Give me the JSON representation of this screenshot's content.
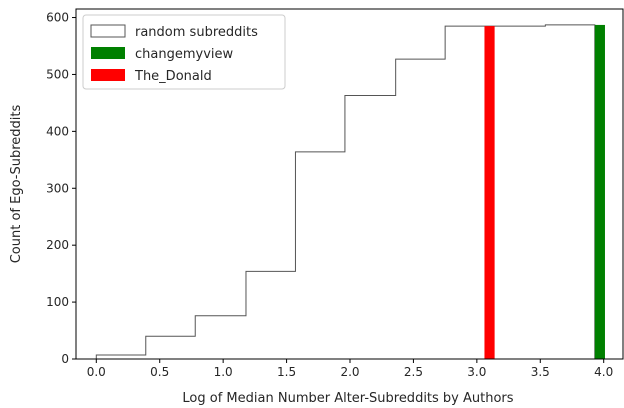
{
  "chart_data": {
    "type": "histogram",
    "title": "",
    "xlabel": "Log of Median Number Alter-Subreddits by Authors",
    "ylabel": "Count of Ego-Subreddits",
    "xlim": [
      -0.16,
      4.16
    ],
    "ylim": [
      0,
      615
    ],
    "x_ticks": [
      {
        "value": 0.0,
        "label": "0.0"
      },
      {
        "value": 0.5,
        "label": "0.5"
      },
      {
        "value": 1.0,
        "label": "1.0"
      },
      {
        "value": 1.5,
        "label": "1.5"
      },
      {
        "value": 2.0,
        "label": "2.0"
      },
      {
        "value": 2.5,
        "label": "2.5"
      },
      {
        "value": 3.0,
        "label": "3.0"
      },
      {
        "value": 3.5,
        "label": "3.5"
      },
      {
        "value": 4.0,
        "label": "4.0"
      }
    ],
    "y_ticks": [
      {
        "value": 0,
        "label": "0"
      },
      {
        "value": 100,
        "label": "100"
      },
      {
        "value": 200,
        "label": "200"
      },
      {
        "value": 300,
        "label": "300"
      },
      {
        "value": 400,
        "label": "400"
      },
      {
        "value": 500,
        "label": "500"
      },
      {
        "value": 600,
        "label": "600"
      }
    ],
    "grid": false,
    "legend_position": "top-left",
    "series": [
      {
        "name": "random subreddits",
        "kind": "cumulative-step",
        "color": "#555555",
        "bin_edges": [
          0.0,
          0.39,
          0.78,
          1.18,
          1.57,
          1.96,
          2.36,
          2.75,
          3.14,
          3.54,
          3.93
        ],
        "counts": [
          7,
          40,
          76,
          154,
          364,
          463,
          527,
          585,
          585,
          587
        ]
      },
      {
        "name": "changemyview",
        "kind": "bar",
        "color": "#008000",
        "x_start": 3.93,
        "x_end": 4.01,
        "value": 587
      },
      {
        "name": "The_Donald",
        "kind": "bar",
        "color": "#ff0000",
        "x_start": 3.06,
        "x_end": 3.14,
        "value": 585
      }
    ]
  }
}
